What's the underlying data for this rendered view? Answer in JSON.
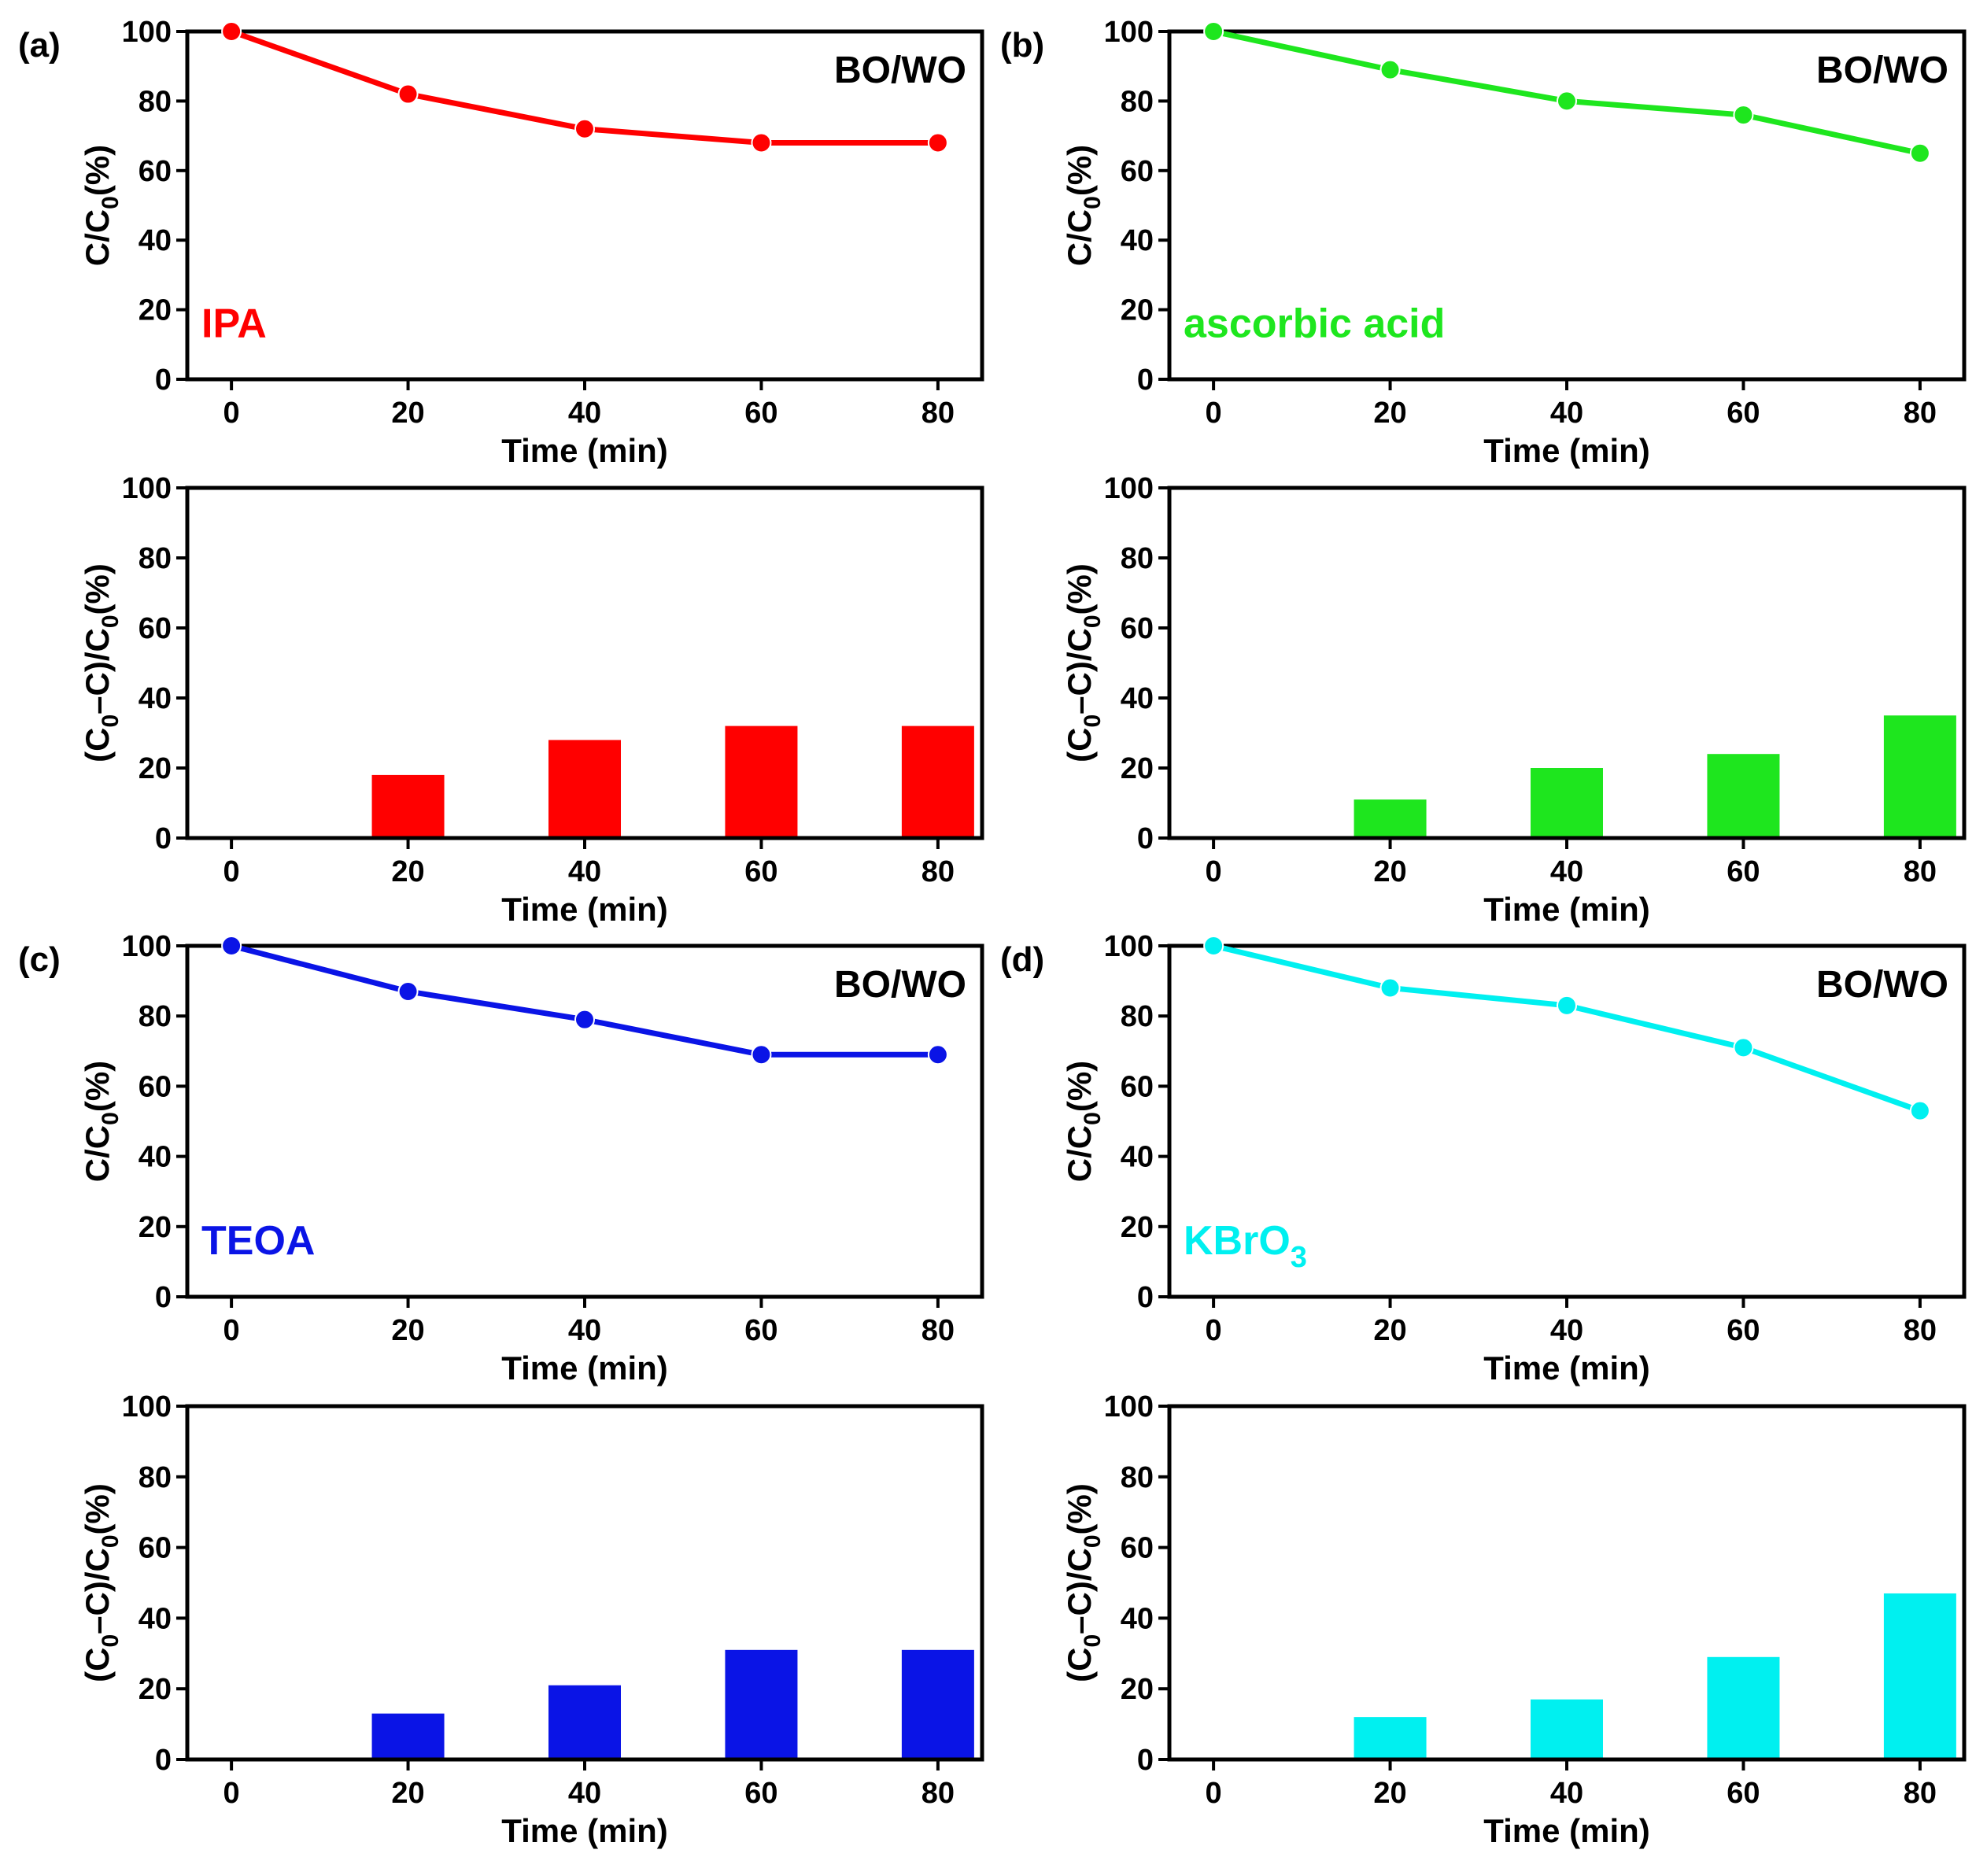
{
  "chart_data": [
    {
      "id": "a-line",
      "type": "line",
      "panel_label": "(a)",
      "badge": "BO/WO",
      "scavenger": "IPA",
      "color": "#ff0000",
      "x": [
        0,
        20,
        40,
        60,
        80
      ],
      "y": [
        100,
        82,
        72,
        68,
        68
      ],
      "xlabel": "Time (min)",
      "ylabel_main": "C/C",
      "ylabel_sub": "0",
      "ylabel_tail": "(%)",
      "xlim": [
        -5,
        85
      ],
      "ylim": [
        0,
        100
      ],
      "xticks": [
        "0",
        "20",
        "40",
        "60",
        "80"
      ],
      "yticks": [
        "0",
        "20",
        "40",
        "60",
        "80",
        "100"
      ]
    },
    {
      "id": "a-bar",
      "type": "bar",
      "color": "#ff0000",
      "x": [
        0,
        20,
        40,
        60,
        80
      ],
      "values": [
        0,
        18,
        28,
        32,
        32
      ],
      "xlabel": "Time (min)",
      "ylabel_main": "(C",
      "ylabel_sub": "0",
      "ylabel_mid": "–C)/C",
      "ylabel_sub2": "0",
      "ylabel_tail": "(%)",
      "xlim": [
        -5,
        85
      ],
      "ylim": [
        0,
        100
      ],
      "xticks": [
        "0",
        "20",
        "40",
        "60",
        "80"
      ],
      "yticks": [
        "0",
        "20",
        "40",
        "60",
        "80",
        "100"
      ]
    },
    {
      "id": "b-line",
      "type": "line",
      "panel_label": "(b)",
      "badge": "BO/WO",
      "scavenger": "ascorbic acid",
      "color": "#1ee61e",
      "x": [
        0,
        20,
        40,
        60,
        80
      ],
      "y": [
        100,
        89,
        80,
        76,
        65
      ],
      "xlabel": "Time (min)",
      "ylabel_main": "C/C",
      "ylabel_sub": "0",
      "ylabel_tail": "(%)",
      "xlim": [
        -5,
        85
      ],
      "ylim": [
        0,
        100
      ],
      "xticks": [
        "0",
        "20",
        "40",
        "60",
        "80"
      ],
      "yticks": [
        "0",
        "20",
        "40",
        "60",
        "80",
        "100"
      ]
    },
    {
      "id": "b-bar",
      "type": "bar",
      "color": "#1ee61e",
      "x": [
        0,
        20,
        40,
        60,
        80
      ],
      "values": [
        0,
        11,
        20,
        24,
        35
      ],
      "xlabel": "Time (min)",
      "ylabel_main": "(C",
      "ylabel_sub": "0",
      "ylabel_mid": "–C)/C",
      "ylabel_sub2": "0",
      "ylabel_tail": "(%)",
      "xlim": [
        -5,
        85
      ],
      "ylim": [
        0,
        100
      ],
      "xticks": [
        "0",
        "20",
        "40",
        "60",
        "80"
      ],
      "yticks": [
        "0",
        "20",
        "40",
        "60",
        "80",
        "100"
      ]
    },
    {
      "id": "c-line",
      "type": "line",
      "panel_label": "(c)",
      "badge": "BO/WO",
      "scavenger": "TEOA",
      "color": "#0a14e6",
      "x": [
        0,
        20,
        40,
        60,
        80
      ],
      "y": [
        100,
        87,
        79,
        69,
        69
      ],
      "xlabel": "Time (min)",
      "ylabel_main": "C/C",
      "ylabel_sub": "0",
      "ylabel_tail": "(%)",
      "xlim": [
        -5,
        85
      ],
      "ylim": [
        0,
        100
      ],
      "xticks": [
        "0",
        "20",
        "40",
        "60",
        "80"
      ],
      "yticks": [
        "0",
        "20",
        "40",
        "60",
        "80",
        "100"
      ]
    },
    {
      "id": "c-bar",
      "type": "bar",
      "color": "#0a14e6",
      "x": [
        0,
        20,
        40,
        60,
        80
      ],
      "values": [
        0,
        13,
        21,
        31,
        31
      ],
      "xlabel": "Time (min)",
      "ylabel_main": "(C",
      "ylabel_sub": "0",
      "ylabel_mid": "–C)/C",
      "ylabel_sub2": "0",
      "ylabel_tail": "(%)",
      "xlim": [
        -5,
        85
      ],
      "ylim": [
        0,
        100
      ],
      "xticks": [
        "0",
        "20",
        "40",
        "60",
        "80"
      ],
      "yticks": [
        "0",
        "20",
        "40",
        "60",
        "80",
        "100"
      ]
    },
    {
      "id": "d-line",
      "type": "line",
      "panel_label": "(d)",
      "badge": "BO/WO",
      "scavenger": "KBrO",
      "scavenger_sub": "3",
      "color": "#00f0f0",
      "x": [
        0,
        20,
        40,
        60,
        80
      ],
      "y": [
        100,
        88,
        83,
        71,
        53
      ],
      "xlabel": "Time (min)",
      "ylabel_main": "C/C",
      "ylabel_sub": "0",
      "ylabel_tail": "(%)",
      "xlim": [
        -5,
        85
      ],
      "ylim": [
        0,
        100
      ],
      "xticks": [
        "0",
        "20",
        "40",
        "60",
        "80"
      ],
      "yticks": [
        "0",
        "20",
        "40",
        "60",
        "80",
        "100"
      ]
    },
    {
      "id": "d-bar",
      "type": "bar",
      "color": "#00f0f0",
      "x": [
        0,
        20,
        40,
        60,
        80
      ],
      "values": [
        0,
        12,
        17,
        29,
        47
      ],
      "xlabel": "Time (min)",
      "ylabel_main": "(C",
      "ylabel_sub": "0",
      "ylabel_mid": "–C)/C",
      "ylabel_sub2": "0",
      "ylabel_tail": "(%)",
      "xlim": [
        -5,
        85
      ],
      "ylim": [
        0,
        100
      ],
      "xticks": [
        "0",
        "20",
        "40",
        "60",
        "80"
      ],
      "yticks": [
        "0",
        "20",
        "40",
        "60",
        "80",
        "100"
      ]
    }
  ]
}
